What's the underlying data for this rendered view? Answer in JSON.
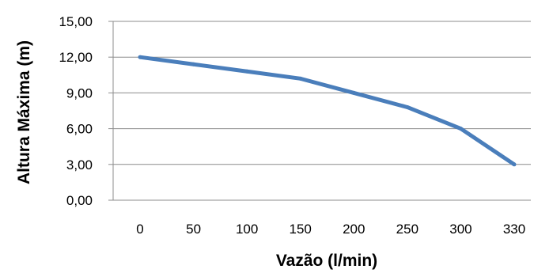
{
  "chart_data": {
    "type": "line",
    "categories": [
      "0",
      "50",
      "100",
      "150",
      "200",
      "250",
      "300",
      "330"
    ],
    "series": [
      {
        "values": [
          12.0,
          11.4,
          10.8,
          10.2,
          9.0,
          7.8,
          6.0,
          3.0
        ]
      }
    ],
    "xlabel": "Vazão (l/min)",
    "ylabel": "Altura Máxima (m)",
    "yticks": [
      "0,00",
      "3,00",
      "6,00",
      "9,00",
      "12,00",
      "15,00"
    ],
    "ylim": [
      0,
      15
    ],
    "grid": true,
    "legend": "none",
    "colors": {
      "line": "#4a7ebb",
      "grid": "#8c8c8c"
    }
  }
}
